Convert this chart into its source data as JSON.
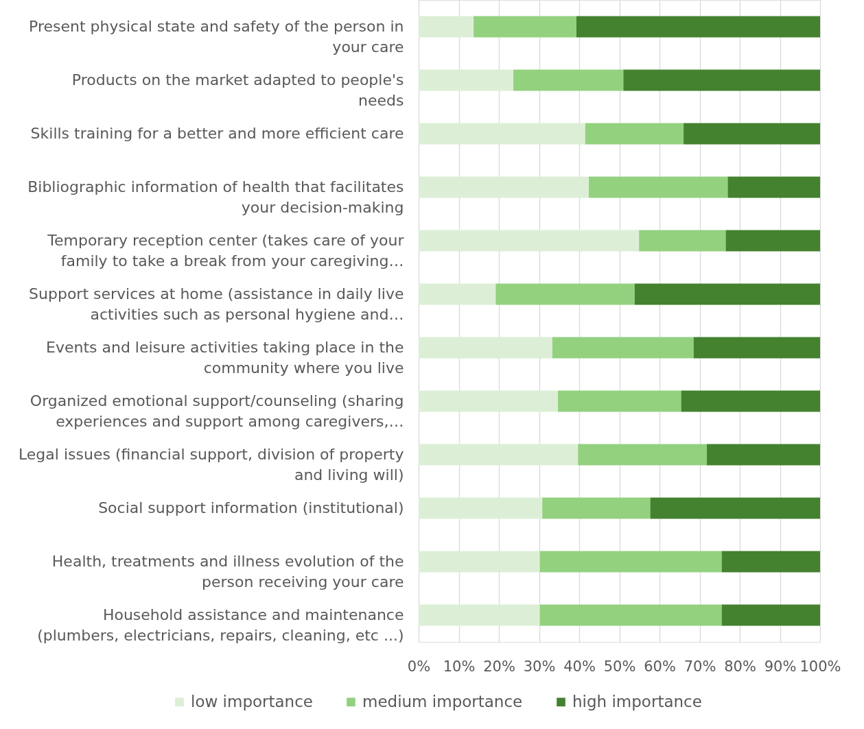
{
  "chart_data": {
    "type": "bar",
    "orientation": "horizontal",
    "stacked": true,
    "categories": [
      "Present physical state and safety of the person in\nyour care",
      "Products on the market adapted to people's\nneeds",
      "Skills training for a better and more efficient care",
      "Bibliographic information of health that facilitates\nyour decision-making",
      "Temporary reception center (takes care of your\nfamily to take a break from your caregiving…",
      "Support services at home (assistance in daily live\nactivities such as personal hygiene and…",
      "Events and leisure activities taking place in the\ncommunity where you live",
      "Organized emotional support/counseling (sharing\nexperiences and support among caregivers,…",
      "Legal issues (financial support, division of property\nand living will)",
      "Social support information (institutional)",
      "Health, treatments and illness evolution of the\nperson receiving your care",
      "Household assistance and maintenance\n(plumbers, electricians, repairs, cleaning, etc ...)"
    ],
    "series": [
      {
        "name": "low importance",
        "color": "#dcefd6",
        "values": [
          13.7,
          23.6,
          41.5,
          42.4,
          54.9,
          19.2,
          33.3,
          34.7,
          39.7,
          30.8,
          30.2,
          30.2
        ]
      },
      {
        "name": "medium importance",
        "color": "#93d17f",
        "values": [
          25.6,
          27.4,
          24.5,
          34.6,
          21.6,
          34.6,
          35.2,
          30.7,
          32.1,
          26.9,
          45.3,
          45.3
        ]
      },
      {
        "name": "high importance",
        "color": "#44822f",
        "values": [
          60.7,
          49.0,
          34.0,
          23.0,
          23.5,
          46.2,
          31.5,
          34.6,
          28.2,
          42.3,
          24.5,
          24.5
        ]
      }
    ],
    "xlim": [
      0,
      100
    ],
    "xticks": [
      {
        "value": 0,
        "label": "0%"
      },
      {
        "value": 10,
        "label": "10%"
      },
      {
        "value": 20,
        "label": "20%"
      },
      {
        "value": 30,
        "label": "30%"
      },
      {
        "value": 40,
        "label": "40%"
      },
      {
        "value": 50,
        "label": "50%"
      },
      {
        "value": 60,
        "label": "60%"
      },
      {
        "value": 70,
        "label": "70%"
      },
      {
        "value": 80,
        "label": "80%"
      },
      {
        "value": 90,
        "label": "90%"
      },
      {
        "value": 100,
        "label": "100%"
      }
    ],
    "grid": "x",
    "legend": "bottom"
  }
}
